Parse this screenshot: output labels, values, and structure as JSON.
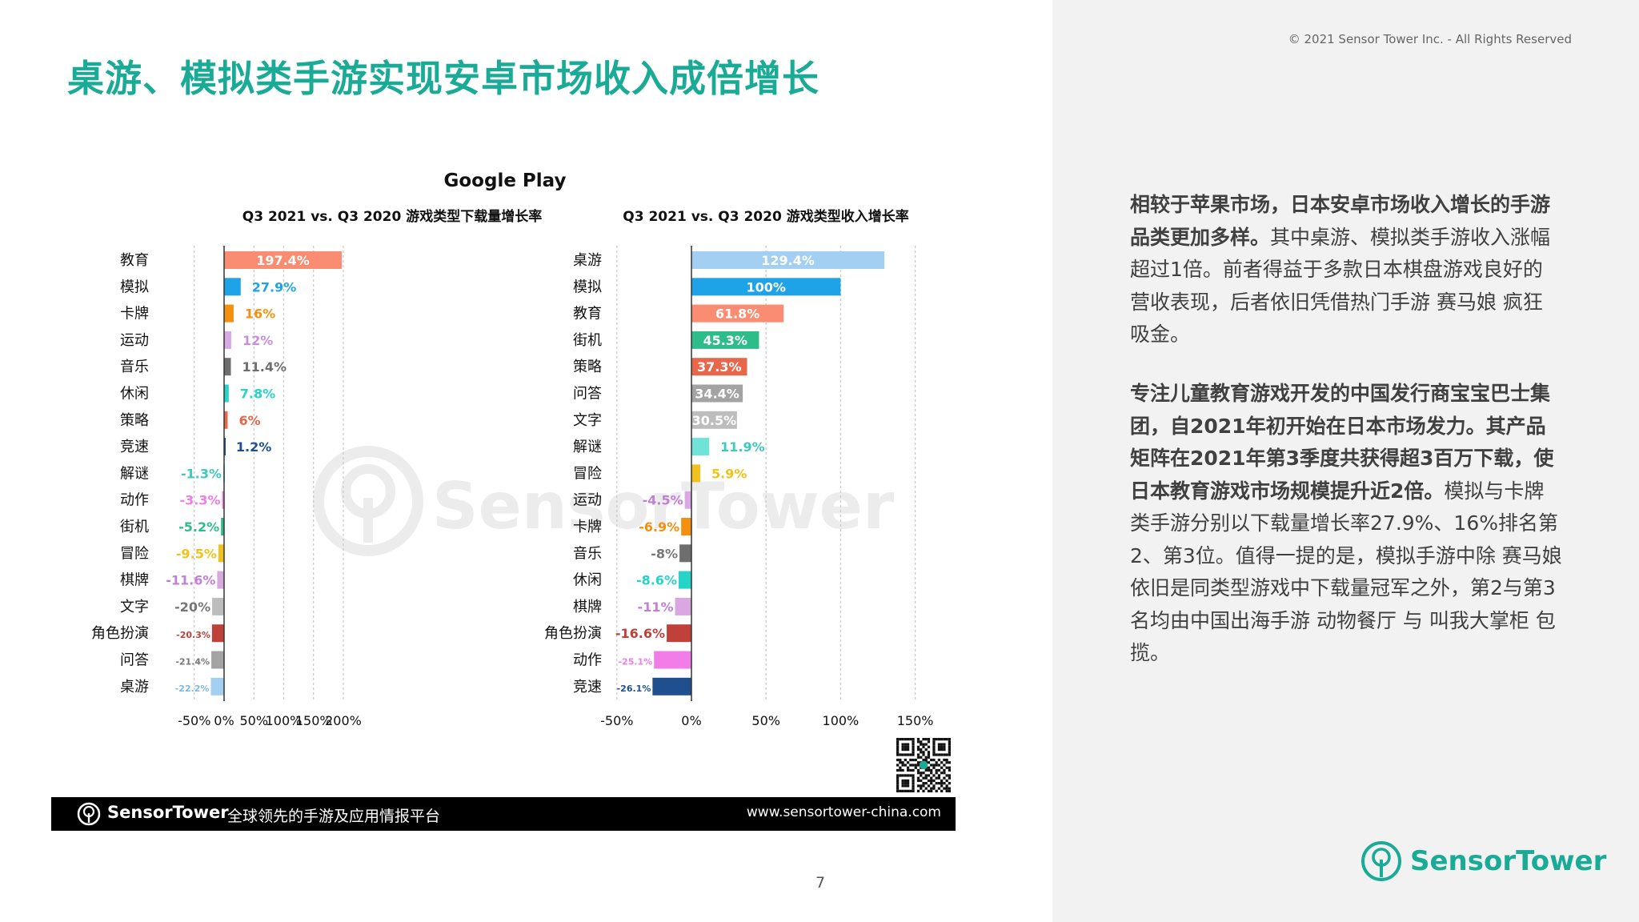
{
  "page": {
    "title": "桌游、模拟类手游实现安卓市场收入成倍增长",
    "copyright": "© 2021 Sensor Tower Inc. - All Rights Reserved",
    "page_number": "7"
  },
  "text": {
    "para1_bold": "相较于苹果市场，日本安卓市场收入增长的手游品类更加多样。",
    "para1_rest": "其中桌游、模拟类手游收入涨幅超过1倍。前者得益于多款日本棋盘游戏良好的营收表现，后者依旧凭借热门手游 赛马娘 疯狂吸金。",
    "para2_bold": "专注儿童教育游戏开发的中国发行商宝宝巴士集团，自2021年初开始在日本市场发力。其产品矩阵在2021年第3季度共获得超3百万下载，使日本教育游戏市场规模提升近2倍。",
    "para2_rest": "模拟与卡牌类手游分别以下载量增长率27.9%、16%排名第2、第3位。值得一提的是，模拟手游中除 赛马娘 依旧是同类型游戏中下载量冠军之外，第2与第3名均由中国出海手游 动物餐厅 与 叫我大掌柜 包揽。"
  },
  "footer": {
    "brand": "SensorTower",
    "slogan": "全球领先的手游及应用情报平台",
    "url": "www.sensortower-china.com"
  },
  "logo": {
    "text": "SensorTower",
    "watermark_text": "SensorTower"
  },
  "icons": {
    "logo_icon": "sensor-tower-logo-icon",
    "qr_code": "qr-code-icon"
  },
  "chart_data": [
    {
      "type": "bar",
      "orientation": "horizontal",
      "supertitle": "Google Play",
      "title": "Q3 2021 vs. Q3 2020 游戏类型下载量增长率",
      "xlim": [
        -50,
        200
      ],
      "ticks": [
        "-50%",
        "0%",
        "50%",
        "100%",
        "150%",
        "200%"
      ],
      "grid": true,
      "categories": [
        "教育",
        "模拟",
        "卡牌",
        "运动",
        "音乐",
        "休闲",
        "策略",
        "竞速",
        "解谜",
        "动作",
        "街机",
        "冒险",
        "棋牌",
        "文字",
        "角色扮演",
        "问答",
        "桌游"
      ],
      "values": [
        197.4,
        27.9,
        16,
        12,
        11.4,
        7.8,
        6,
        1.2,
        -1.3,
        -3.3,
        -5.2,
        -9.5,
        -11.6,
        -20,
        -20.3,
        -21.4,
        -22.2
      ],
      "labels": [
        "197.4%",
        "27.9%",
        "16%",
        "12%",
        "11.4%",
        "7.8%",
        "6%",
        "1.2%",
        "-1.3%",
        "-3.3%",
        "-5.2%",
        "-9.5%",
        "-11.6%",
        "-20%",
        "-20.3%",
        "-21.4%",
        "-22.2%"
      ],
      "colors": [
        "#fa8c72",
        "#1fa3e8",
        "#f5900e",
        "#dba8e6",
        "#6e6e6e",
        "#26d4c8",
        "#e8664a",
        "#1f4f8f",
        "#6fe3d8",
        "#f27ce8",
        "#2ebd8a",
        "#f0c21a",
        "#d9a8e0",
        "#bdbdbd",
        "#c0403a",
        "#a3a3a3",
        "#a3cff2"
      ]
    },
    {
      "type": "bar",
      "orientation": "horizontal",
      "title": "Q3 2021 vs. Q3 2020 游戏类型收入增长率",
      "xlim": [
        -50,
        150
      ],
      "ticks": [
        "-50%",
        "0%",
        "50%",
        "100%",
        "150%"
      ],
      "grid": true,
      "categories": [
        "桌游",
        "模拟",
        "教育",
        "街机",
        "策略",
        "问答",
        "文字",
        "解谜",
        "冒险",
        "运动",
        "卡牌",
        "音乐",
        "休闲",
        "棋牌",
        "角色扮演",
        "动作",
        "竞速"
      ],
      "values": [
        129.4,
        100,
        61.8,
        45.3,
        37.3,
        34.4,
        30.5,
        11.9,
        5.9,
        -4.5,
        -6.9,
        -8,
        -8.6,
        -11,
        -16.6,
        -25.1,
        -26.1
      ],
      "labels": [
        "129.4%",
        "100%",
        "61.8%",
        "45.3%",
        "37.3%",
        "34.4%",
        "30.5%",
        "11.9%",
        "5.9%",
        "-4.5%",
        "-6.9%",
        "-8%",
        "-8.6%",
        "-11%",
        "-16.6%",
        "-25.1%",
        "-26.1%"
      ],
      "colors": [
        "#a3cff2",
        "#1fa3e8",
        "#fa8c72",
        "#2ebd8a",
        "#e8664a",
        "#a3a3a3",
        "#bdbdbd",
        "#6fe3d8",
        "#f0c21a",
        "#dba8e6",
        "#f5900e",
        "#6e6e6e",
        "#26d4c8",
        "#d9a8e0",
        "#c0403a",
        "#f27ce8",
        "#1f4f8f"
      ]
    }
  ]
}
